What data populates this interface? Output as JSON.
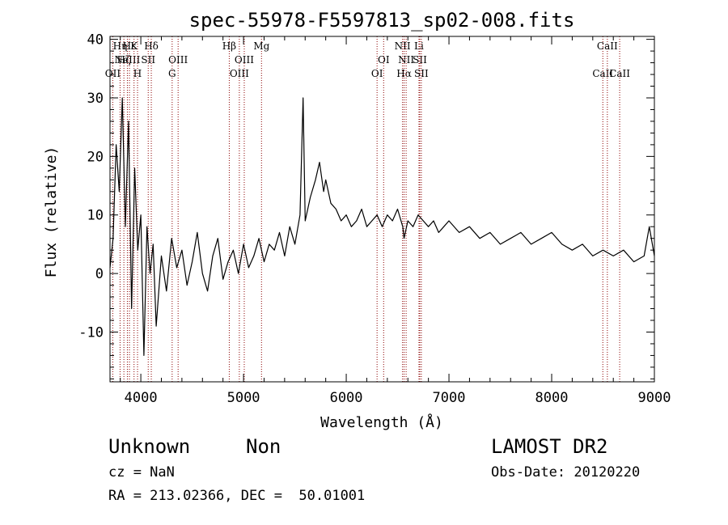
{
  "chart_data": {
    "type": "line",
    "title": "spec-55978-F5597813_sp02-008.fits",
    "xlabel": "Wavelength (Å)",
    "ylabel": "Flux (relative)",
    "xlim": [
      3700,
      9000
    ],
    "ylim": [
      -18.5,
      40.5
    ],
    "xticks": [
      4000,
      5000,
      6000,
      7000,
      8000,
      9000
    ],
    "yticks": [
      -10,
      0,
      10,
      20,
      30,
      40
    ],
    "grid": false,
    "line_color": "#000000",
    "marker_color": "#8b0000",
    "series": [
      {
        "values_description": "",
        "x": [
          3700,
          3730,
          3760,
          3790,
          3820,
          3850,
          3880,
          3910,
          3940,
          3970,
          4000,
          4030,
          4060,
          4090,
          4120,
          4150,
          4200,
          4250,
          4300,
          4350,
          4400,
          4450,
          4500,
          4550,
          4600,
          4650,
          4700,
          4750,
          4800,
          4850,
          4900,
          4950,
          5000,
          5050,
          5100,
          5150,
          5200,
          5250,
          5300,
          5350,
          5400,
          5450,
          5500,
          5550,
          5580,
          5600,
          5650,
          5700,
          5740,
          5780,
          5800,
          5850,
          5900,
          5950,
          6000,
          6050,
          6100,
          6150,
          6200,
          6250,
          6300,
          6350,
          6400,
          6450,
          6500,
          6550,
          6563,
          6600,
          6650,
          6700,
          6750,
          6800,
          6850,
          6900,
          6950,
          7000,
          7100,
          7200,
          7300,
          7400,
          7500,
          7600,
          7700,
          7800,
          7900,
          8000,
          8100,
          8200,
          8300,
          8400,
          8500,
          8600,
          8700,
          8800,
          8900,
          8950,
          9000
        ],
        "y": [
          1,
          6,
          22,
          14,
          30,
          8,
          26,
          -6,
          18,
          4,
          10,
          -14,
          8,
          0,
          5,
          -9,
          3,
          -3,
          6,
          1,
          4,
          -2,
          2,
          7,
          0,
          -3,
          3,
          6,
          -1,
          2,
          4,
          0,
          5,
          1,
          3,
          6,
          2,
          5,
          4,
          7,
          3,
          8,
          5,
          10,
          30,
          9,
          13,
          16,
          19,
          14,
          16,
          12,
          11,
          9,
          10,
          8,
          9,
          11,
          8,
          9,
          10,
          8,
          10,
          9,
          11,
          8,
          6,
          9,
          8,
          10,
          9,
          8,
          9,
          7,
          8,
          9,
          7,
          8,
          6,
          7,
          5,
          6,
          7,
          5,
          6,
          7,
          5,
          4,
          5,
          3,
          4,
          3,
          4,
          2,
          3,
          8,
          3
        ]
      }
    ],
    "lines": [
      {
        "wl": 3727,
        "label": "OII",
        "row": 3
      },
      {
        "wl": 3798,
        "label": "Hη",
        "row": 1
      },
      {
        "wl": 3835,
        "label": "Hζ",
        "row": 2
      },
      {
        "wl": 3869,
        "label": "NeIII",
        "row": 2
      },
      {
        "wl": 3889,
        "label": "Hε",
        "row": 1
      },
      {
        "wl": 3934,
        "label": "K",
        "row": 1
      },
      {
        "wl": 3968,
        "label": "H",
        "row": 3
      },
      {
        "wl": 4072,
        "label": "SII",
        "row": 2
      },
      {
        "wl": 4102,
        "label": "Hδ",
        "row": 1
      },
      {
        "wl": 4305,
        "label": "G",
        "row": 3
      },
      {
        "wl": 4363,
        "label": "OIII",
        "row": 2
      },
      {
        "wl": 4861,
        "label": "Hβ",
        "row": 1
      },
      {
        "wl": 4959,
        "label": "OIII",
        "row": 3
      },
      {
        "wl": 5007,
        "label": "OIII",
        "row": 2
      },
      {
        "wl": 5175,
        "label": "Mg",
        "row": 1
      },
      {
        "wl": 6300,
        "label": "OI",
        "row": 3
      },
      {
        "wl": 6364,
        "label": "OI",
        "row": 2
      },
      {
        "wl": 6548,
        "label": "NII",
        "row": 1
      },
      {
        "wl": 6563,
        "label": "Hα",
        "row": 3
      },
      {
        "wl": 6583,
        "label": "NII",
        "row": 2
      },
      {
        "wl": 6708,
        "label": "Li",
        "row": 1
      },
      {
        "wl": 6716,
        "label": "SII",
        "row": 2
      },
      {
        "wl": 6731,
        "label": "SII",
        "row": 3
      },
      {
        "wl": 8498,
        "label": "CaII",
        "row": 3
      },
      {
        "wl": 8542,
        "label": "CaII",
        "row": 1
      },
      {
        "wl": 8662,
        "label": "CaII",
        "row": 3
      }
    ]
  },
  "info": {
    "object_class": "Unknown",
    "subclass": "Non",
    "survey": "LAMOST DR2",
    "cz": "cz = NaN",
    "obs_date": "Obs-Date: 20120220",
    "coords": "RA = 213.02366, DEC =  50.01001"
  }
}
